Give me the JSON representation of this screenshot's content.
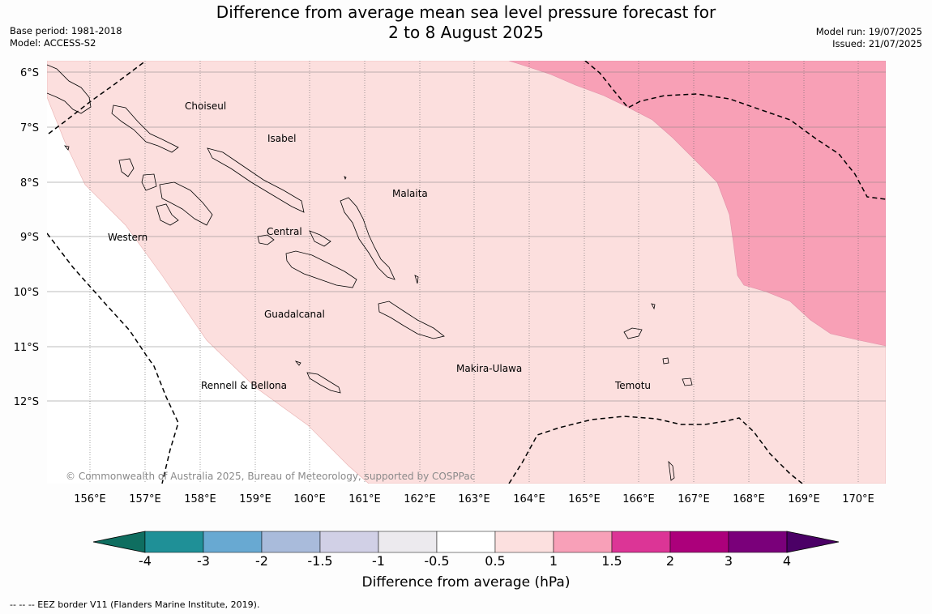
{
  "header": {
    "title_line1": "Difference from average mean sea level pressure forecast for",
    "title_line2": "2 to 8 August 2025",
    "base_period": "Base period: 1981-2018",
    "model": "Model: ACCESS-S2",
    "model_run": "Model run: 19/07/2025",
    "issued": "Issued: 21/07/2025"
  },
  "map": {
    "lat_labels": [
      "6°S",
      "7°S",
      "8°S",
      "9°S",
      "10°S",
      "11°S",
      "12°S"
    ],
    "lon_labels": [
      "156°E",
      "157°E",
      "158°E",
      "159°E",
      "160°E",
      "161°E",
      "162°E",
      "163°E",
      "164°E",
      "165°E",
      "166°E",
      "167°E",
      "168°E",
      "169°E",
      "170°E"
    ],
    "regions": [
      {
        "name": "Choiseul"
      },
      {
        "name": "Isabel"
      },
      {
        "name": "Malaita"
      },
      {
        "name": "Central"
      },
      {
        "name": "Western"
      },
      {
        "name": "Guadalcanal"
      },
      {
        "name": "Makira-Ulawa"
      },
      {
        "name": "Rennell & Bellona"
      },
      {
        "name": "Temotu"
      }
    ],
    "copyright": "© Commonwealth of Australia 2025, Bureau of Meteorology, supported by COSPPac"
  },
  "colorbar": {
    "title": "Difference from average (hPa)",
    "ticks": [
      "-4",
      "-3",
      "-2",
      "-1.5",
      "-1",
      "-0.5",
      "0.5",
      "1",
      "1.5",
      "2",
      "3",
      "4"
    ],
    "colors": [
      "#0f6e60",
      "#1f9097",
      "#68a9d2",
      "#a9bbdb",
      "#d1d0e6",
      "#eceaee",
      "#ffffff",
      "#fce0df",
      "#f8a0b8",
      "#dc3596",
      "#ac007b",
      "#7a007a",
      "#4b0066"
    ]
  },
  "footnote": "--  --  -- EEZ border V11 (Flanders Marine Institute, 2019)."
}
